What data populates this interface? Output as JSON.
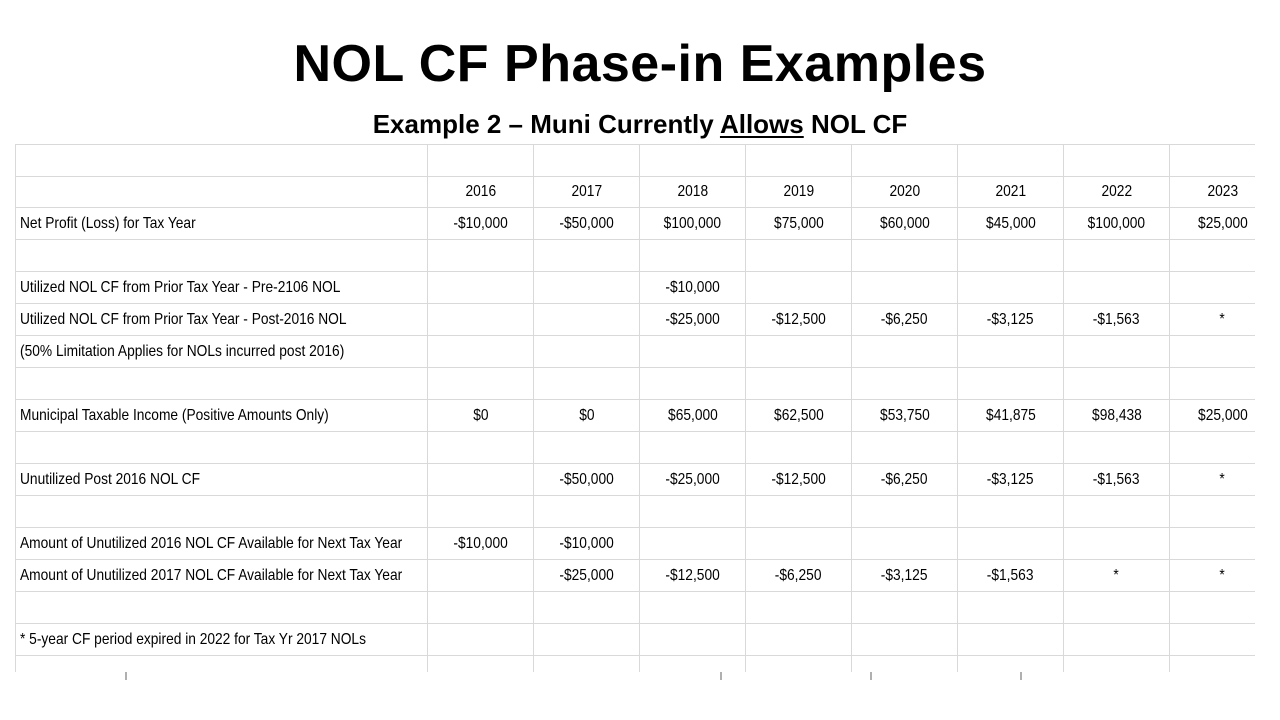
{
  "title": "NOL CF Phase-in Examples",
  "subtitle": {
    "prefix": "Example 2 – Muni Currently ",
    "underlined": "Allows",
    "suffix": " NOL CF"
  },
  "years": [
    "2016",
    "2017",
    "2018",
    "2019",
    "2020",
    "2021",
    "2022",
    "2023"
  ],
  "rows": [
    {
      "label": "",
      "values": [
        "",
        "",
        "",
        "",
        "",
        "",
        "",
        ""
      ]
    },
    {
      "label": "",
      "values": [
        "2016",
        "2017",
        "2018",
        "2019",
        "2020",
        "2021",
        "2022",
        "2023"
      ],
      "header": true
    },
    {
      "label": "Net Profit (Loss) for Tax Year",
      "values": [
        "-$10,000",
        "-$50,000",
        "$100,000",
        "$75,000",
        "$60,000",
        "$45,000",
        "$100,000",
        "$25,000"
      ]
    },
    {
      "label": "",
      "values": [
        "",
        "",
        "",
        "",
        "",
        "",
        "",
        ""
      ]
    },
    {
      "label": "Utilized NOL CF from Prior Tax Year - Pre-2106 NOL",
      "values": [
        "",
        "",
        "-$10,000",
        "",
        "",
        "",
        "",
        ""
      ]
    },
    {
      "label": "Utilized NOL CF from Prior Tax Year - Post-2016 NOL",
      "values": [
        "",
        "",
        "-$25,000",
        "-$12,500",
        "-$6,250",
        "-$3,125",
        "-$1,563",
        "*"
      ]
    },
    {
      "label": " (50% Limitation Applies for NOLs incurred post 2016)",
      "values": [
        "",
        "",
        "",
        "",
        "",
        "",
        "",
        ""
      ]
    },
    {
      "label": "",
      "values": [
        "",
        "",
        "",
        "",
        "",
        "",
        "",
        ""
      ]
    },
    {
      "label": "Municipal Taxable Income (Positive Amounts Only)",
      "values": [
        "$0",
        "$0",
        "$65,000",
        "$62,500",
        "$53,750",
        "$41,875",
        "$98,438",
        "$25,000"
      ]
    },
    {
      "label": "",
      "values": [
        "",
        "",
        "",
        "",
        "",
        "",
        "",
        ""
      ]
    },
    {
      "label": "Unutilized Post 2016 NOL CF",
      "values": [
        "",
        "-$50,000",
        "-$25,000",
        "-$12,500",
        "-$6,250",
        "-$3,125",
        "-$1,563",
        "*"
      ]
    },
    {
      "label": "",
      "values": [
        "",
        "",
        "",
        "",
        "",
        "",
        "",
        ""
      ]
    },
    {
      "label": "Amount of Unutilized 2016 NOL CF Available for Next Tax Year",
      "values": [
        "-$10,000",
        "-$10,000",
        "",
        "",
        "",
        "",
        "",
        ""
      ]
    },
    {
      "label": "Amount of Unutilized 2017 NOL CF Available for Next Tax Year",
      "values": [
        "",
        "-$25,000",
        "-$12,500",
        "-$6,250",
        "-$3,125",
        "-$1,563",
        "*",
        "*"
      ]
    },
    {
      "label": "",
      "values": [
        "",
        "",
        "",
        "",
        "",
        "",
        "",
        ""
      ]
    },
    {
      "label": "* 5-year CF period expired in 2022 for Tax Yr 2017 NOLs",
      "values": [
        "",
        "",
        "",
        "",
        "",
        "",
        "",
        ""
      ]
    },
    {
      "label": "",
      "values": [
        "",
        "",
        "",
        "",
        "",
        "",
        "",
        ""
      ]
    }
  ]
}
